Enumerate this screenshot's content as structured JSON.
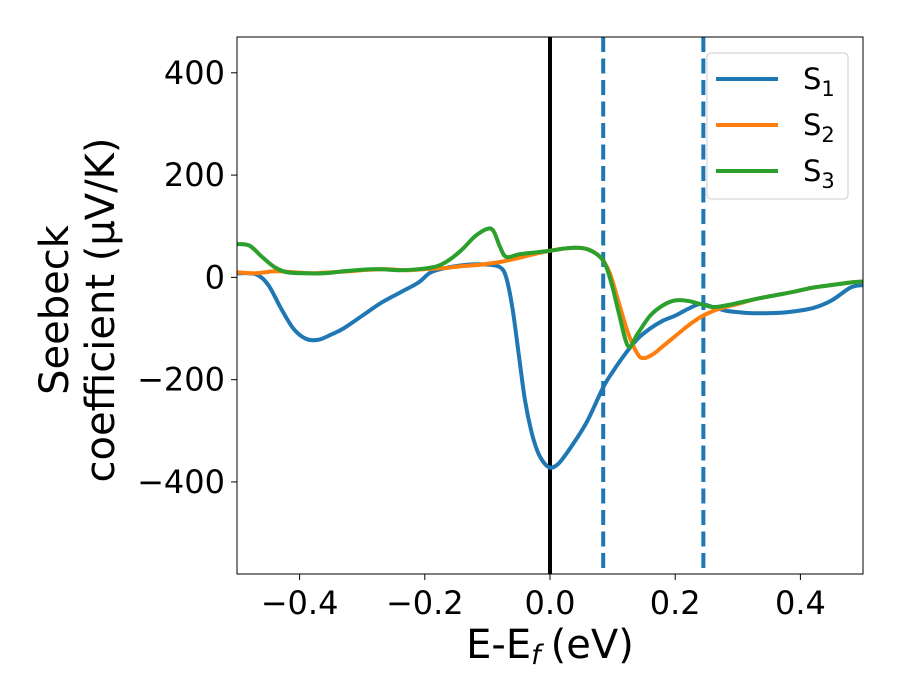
{
  "chart_data": {
    "type": "line",
    "xlabel": "E-E",
    "xlabel_sub": "f",
    "xlabel_unit": "(eV)",
    "ylabel_line1": "Seebeck",
    "ylabel_line2": "coefficient  (μV/K)",
    "xlim": [
      -0.5,
      0.5
    ],
    "ylim": [
      -580,
      470
    ],
    "xticks": [
      -0.4,
      -0.2,
      0.0,
      0.2,
      0.4
    ],
    "xtick_labels": [
      "−0.4",
      "−0.2",
      "0.0",
      "0.2",
      "0.4"
    ],
    "yticks": [
      400,
      200,
      0,
      -200,
      -400
    ],
    "ytick_labels": [
      "400",
      "200",
      "0",
      "−200",
      "−400"
    ],
    "grid": false,
    "legend_position": "top-right",
    "vlines": [
      {
        "x": 0.0,
        "style": "solid",
        "color": "#000000"
      },
      {
        "x": 0.085,
        "style": "dashed",
        "color": "#1f77b4"
      },
      {
        "x": 0.245,
        "style": "dashed",
        "color": "#1f77b4"
      }
    ],
    "series": [
      {
        "name": "S",
        "sub": "1",
        "color": "#1f77b4",
        "points": [
          [
            -0.5,
            8
          ],
          [
            -0.47,
            6
          ],
          [
            -0.45,
            -15
          ],
          [
            -0.43,
            -60
          ],
          [
            -0.41,
            -100
          ],
          [
            -0.39,
            -120
          ],
          [
            -0.37,
            -122
          ],
          [
            -0.35,
            -112
          ],
          [
            -0.33,
            -100
          ],
          [
            -0.3,
            -75
          ],
          [
            -0.27,
            -50
          ],
          [
            -0.24,
            -30
          ],
          [
            -0.21,
            -10
          ],
          [
            -0.19,
            10
          ],
          [
            -0.16,
            20
          ],
          [
            -0.13,
            25
          ],
          [
            -0.1,
            25
          ],
          [
            -0.08,
            20
          ],
          [
            -0.07,
            0
          ],
          [
            -0.06,
            -60
          ],
          [
            -0.05,
            -150
          ],
          [
            -0.04,
            -240
          ],
          [
            -0.03,
            -300
          ],
          [
            -0.02,
            -340
          ],
          [
            -0.01,
            -362
          ],
          [
            0.0,
            -372
          ],
          [
            0.01,
            -368
          ],
          [
            0.02,
            -355
          ],
          [
            0.04,
            -320
          ],
          [
            0.06,
            -280
          ],
          [
            0.085,
            -215
          ],
          [
            0.1,
            -185
          ],
          [
            0.12,
            -150
          ],
          [
            0.14,
            -120
          ],
          [
            0.16,
            -100
          ],
          [
            0.18,
            -85
          ],
          [
            0.2,
            -75
          ],
          [
            0.22,
            -62
          ],
          [
            0.24,
            -52
          ],
          [
            0.26,
            -58
          ],
          [
            0.28,
            -65
          ],
          [
            0.3,
            -68
          ],
          [
            0.32,
            -70
          ],
          [
            0.35,
            -70
          ],
          [
            0.38,
            -68
          ],
          [
            0.42,
            -60
          ],
          [
            0.45,
            -45
          ],
          [
            0.48,
            -20
          ],
          [
            0.5,
            -15
          ]
        ]
      },
      {
        "name": "S",
        "sub": "2",
        "color": "#ff7f0e",
        "points": [
          [
            -0.5,
            10
          ],
          [
            -0.47,
            8
          ],
          [
            -0.44,
            12
          ],
          [
            -0.41,
            10
          ],
          [
            -0.38,
            8
          ],
          [
            -0.35,
            10
          ],
          [
            -0.32,
            12
          ],
          [
            -0.29,
            15
          ],
          [
            -0.26,
            16
          ],
          [
            -0.23,
            14
          ],
          [
            -0.2,
            16
          ],
          [
            -0.17,
            18
          ],
          [
            -0.14,
            22
          ],
          [
            -0.11,
            25
          ],
          [
            -0.08,
            30
          ],
          [
            -0.05,
            38
          ],
          [
            -0.02,
            47
          ],
          [
            0.0,
            52
          ],
          [
            0.02,
            56
          ],
          [
            0.04,
            58
          ],
          [
            0.06,
            55
          ],
          [
            0.08,
            40
          ],
          [
            0.095,
            10
          ],
          [
            0.11,
            -50
          ],
          [
            0.125,
            -110
          ],
          [
            0.14,
            -150
          ],
          [
            0.15,
            -158
          ],
          [
            0.165,
            -150
          ],
          [
            0.18,
            -135
          ],
          [
            0.2,
            -115
          ],
          [
            0.22,
            -95
          ],
          [
            0.24,
            -78
          ],
          [
            0.26,
            -66
          ],
          [
            0.28,
            -58
          ],
          [
            0.3,
            -52
          ],
          [
            0.33,
            -42
          ],
          [
            0.36,
            -35
          ],
          [
            0.39,
            -28
          ],
          [
            0.42,
            -20
          ],
          [
            0.45,
            -15
          ],
          [
            0.48,
            -10
          ],
          [
            0.5,
            -8
          ]
        ]
      },
      {
        "name": "S",
        "sub": "3",
        "color": "#2ca02c",
        "points": [
          [
            -0.5,
            65
          ],
          [
            -0.48,
            62
          ],
          [
            -0.46,
            40
          ],
          [
            -0.44,
            20
          ],
          [
            -0.42,
            10
          ],
          [
            -0.39,
            8
          ],
          [
            -0.36,
            8
          ],
          [
            -0.33,
            12
          ],
          [
            -0.3,
            15
          ],
          [
            -0.27,
            16
          ],
          [
            -0.24,
            14
          ],
          [
            -0.21,
            16
          ],
          [
            -0.18,
            22
          ],
          [
            -0.16,
            35
          ],
          [
            -0.14,
            55
          ],
          [
            -0.12,
            80
          ],
          [
            -0.1,
            95
          ],
          [
            -0.09,
            90
          ],
          [
            -0.08,
            60
          ],
          [
            -0.07,
            40
          ],
          [
            -0.05,
            45
          ],
          [
            -0.03,
            48
          ],
          [
            0.0,
            52
          ],
          [
            0.02,
            56
          ],
          [
            0.04,
            58
          ],
          [
            0.06,
            55
          ],
          [
            0.08,
            40
          ],
          [
            0.09,
            20
          ],
          [
            0.1,
            -20
          ],
          [
            0.11,
            -70
          ],
          [
            0.125,
            -135
          ],
          [
            0.14,
            -110
          ],
          [
            0.16,
            -75
          ],
          [
            0.18,
            -55
          ],
          [
            0.2,
            -45
          ],
          [
            0.22,
            -46
          ],
          [
            0.24,
            -52
          ],
          [
            0.26,
            -58
          ],
          [
            0.28,
            -55
          ],
          [
            0.3,
            -50
          ],
          [
            0.33,
            -42
          ],
          [
            0.36,
            -35
          ],
          [
            0.39,
            -28
          ],
          [
            0.42,
            -20
          ],
          [
            0.45,
            -15
          ],
          [
            0.48,
            -10
          ],
          [
            0.5,
            -8
          ]
        ]
      }
    ]
  }
}
